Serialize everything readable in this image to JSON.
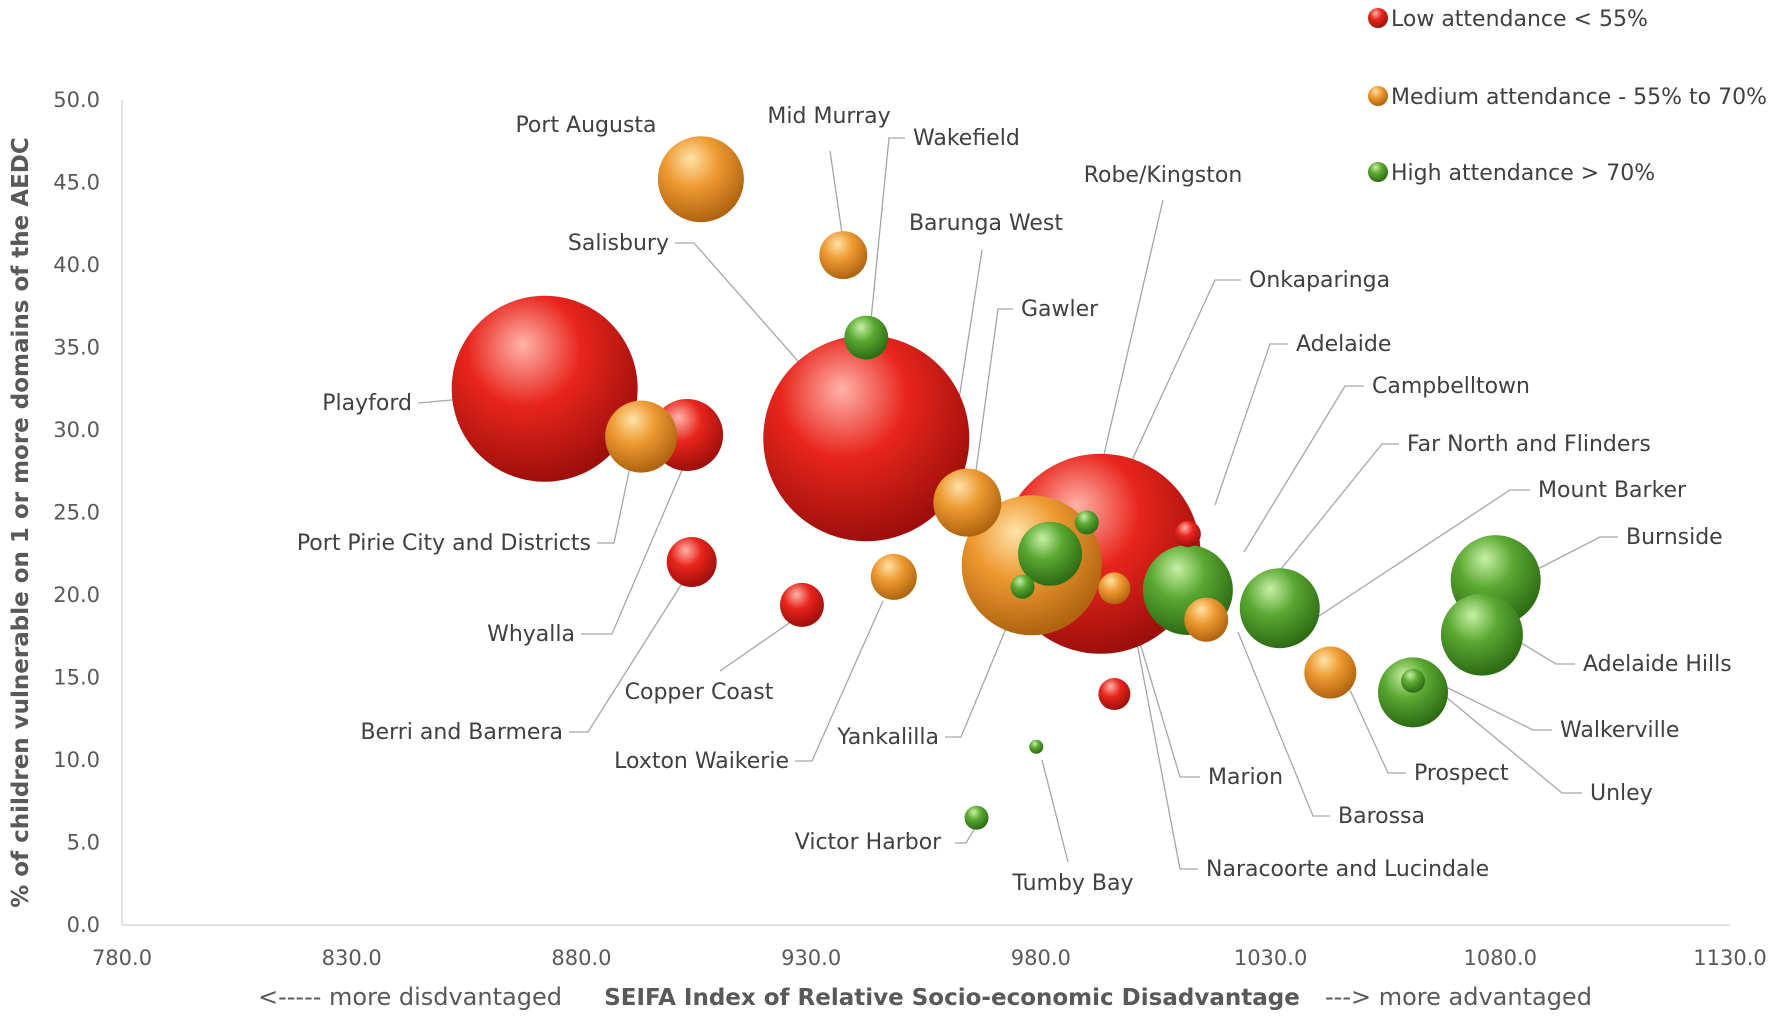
{
  "chart_data": {
    "type": "scatter",
    "subtype": "bubble",
    "xlabel": "SEIFA Index of Relative Socio-economic Disadvantage",
    "xlabel_left_note": "<----- more disdvantaged",
    "xlabel_right_note": "---> more advantaged",
    "ylabel": "% of children vulnerable on 1 or more domains of the AEDC",
    "xlim": [
      780,
      1130
    ],
    "ylim": [
      0,
      50
    ],
    "xticks": [
      "780.0",
      "830.0",
      "880.0",
      "930.0",
      "980.0",
      "1030.0",
      "1080.0",
      "1130.0"
    ],
    "yticks": [
      "0.0",
      "5.0",
      "10.0",
      "15.0",
      "20.0",
      "25.0",
      "30.0",
      "35.0",
      "40.0",
      "45.0",
      "50.0"
    ],
    "grid": false,
    "legend_position": "top-right",
    "legend": [
      {
        "key": "low",
        "label": "Low attendance < 55%",
        "color": "#e0201b"
      },
      {
        "key": "medium",
        "label": "Medium attendance - 55% to 70%",
        "color": "#f0a030"
      },
      {
        "key": "high",
        "label": "High attendance > 70%",
        "color": "#5aa832"
      }
    ],
    "size_unit": "relative bubble size",
    "points": [
      {
        "name": "Playford",
        "x": 872,
        "y": 32.5,
        "size": 93,
        "category": "low"
      },
      {
        "name": "Salisbury",
        "x": 942,
        "y": 29.5,
        "size": 103,
        "category": "low"
      },
      {
        "name": "Onkaparinga",
        "x": 993,
        "y": 22.5,
        "size": 100,
        "category": "low"
      },
      {
        "name": "Whyalla",
        "x": 903,
        "y": 29.7,
        "size": 36,
        "category": "low"
      },
      {
        "name": "Berri and Barmera",
        "x": 904,
        "y": 22.0,
        "size": 25,
        "category": "low"
      },
      {
        "name": "Copper Coast",
        "x": 928,
        "y": 19.4,
        "size": 22,
        "category": "low"
      },
      {
        "name": "Marion",
        "x": 996,
        "y": 14.0,
        "size": 16,
        "category": "low"
      },
      {
        "name": "Adelaide",
        "x": 1012,
        "y": 23.7,
        "size": 13,
        "category": "low"
      },
      {
        "name": "Port Augusta",
        "x": 906,
        "y": 45.2,
        "size": 43,
        "category": "medium"
      },
      {
        "name": "Port Pirie City and Districts",
        "x": 893,
        "y": 29.6,
        "size": 36,
        "category": "medium"
      },
      {
        "name": "Mid Murray",
        "x": 937,
        "y": 40.6,
        "size": 24,
        "category": "medium"
      },
      {
        "name": "Loxton Waikerie",
        "x": 948,
        "y": 21.1,
        "size": 23,
        "category": "medium"
      },
      {
        "name": "Gawler",
        "x": 964,
        "y": 25.6,
        "size": 34,
        "category": "medium"
      },
      {
        "name": "Barossa",
        "x": 978,
        "y": 21.8,
        "size": 70,
        "category": "medium"
      },
      {
        "name": "Naracoorte and Lucindale",
        "x": 996,
        "y": 20.4,
        "size": 16,
        "category": "medium"
      },
      {
        "name": "Prospect",
        "x": 1043,
        "y": 15.3,
        "size": 26,
        "category": "medium"
      },
      {
        "name": "Campbelltown",
        "x": 1016,
        "y": 18.5,
        "size": 22,
        "category": "medium"
      },
      {
        "name": "Wakefield",
        "x": 942,
        "y": 35.6,
        "size": 22,
        "category": "high"
      },
      {
        "name": "Yankalilla",
        "x": 976,
        "y": 20.5,
        "size": 12,
        "category": "high"
      },
      {
        "name": "Robe/Kingston",
        "x": 990,
        "y": 24.4,
        "size": 12,
        "category": "high"
      },
      {
        "name": "Barunga West",
        "x": 982,
        "y": 22.5,
        "size": 32,
        "category": "high"
      },
      {
        "name": "Mount Barker",
        "x": 1012,
        "y": 20.3,
        "size": 45,
        "category": "high"
      },
      {
        "name": "Far North and Flinders",
        "x": 1032,
        "y": 19.2,
        "size": 40,
        "category": "high"
      },
      {
        "name": "Burnside",
        "x": 1079,
        "y": 20.9,
        "size": 45,
        "category": "high"
      },
      {
        "name": "Adelaide Hills",
        "x": 1076,
        "y": 17.6,
        "size": 41,
        "category": "high"
      },
      {
        "name": "Walkerville",
        "x": 1061,
        "y": 14.1,
        "size": 35,
        "category": "high"
      },
      {
        "name": "Unley",
        "x": 1061,
        "y": 14.8,
        "size": 12,
        "category": "high"
      },
      {
        "name": "Victor Harbor",
        "x": 966,
        "y": 6.5,
        "size": 12,
        "category": "high"
      },
      {
        "name": "Tumby Bay",
        "x": 979,
        "y": 10.8,
        "size": 7,
        "category": "high"
      }
    ]
  }
}
